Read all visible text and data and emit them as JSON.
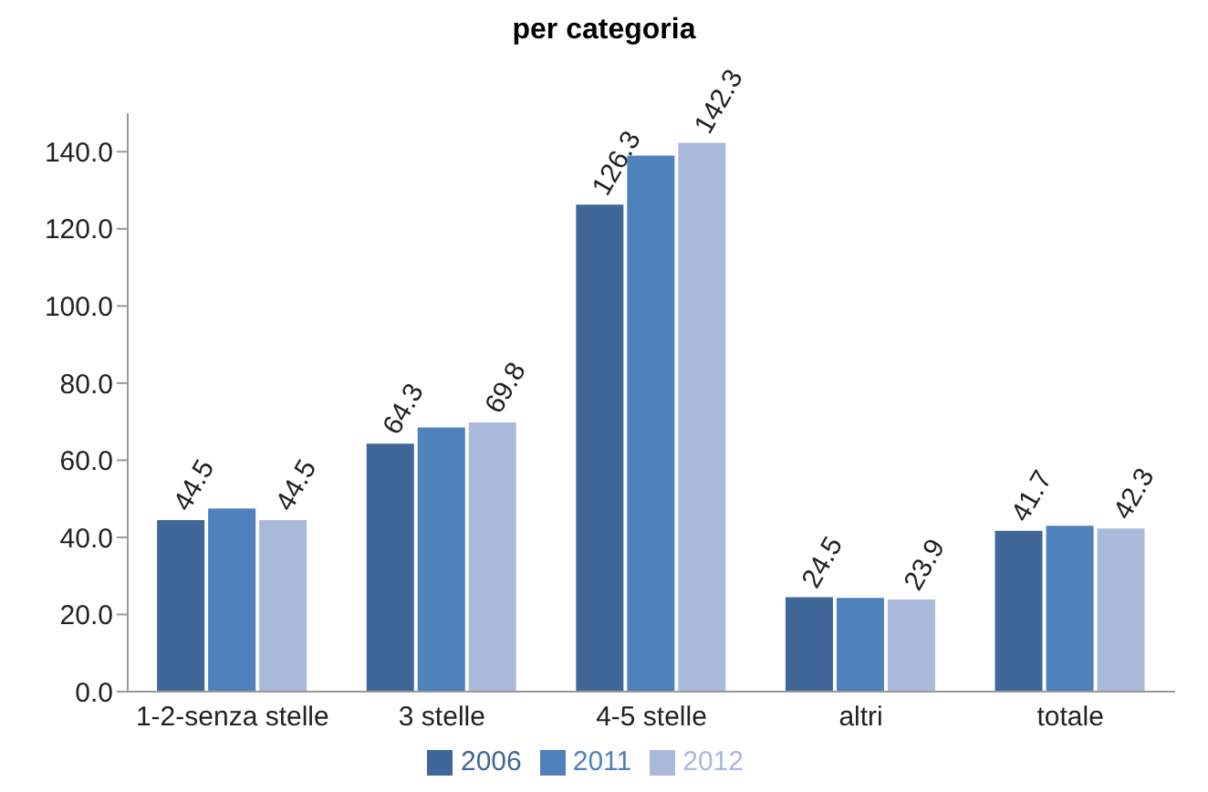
{
  "chart_data": {
    "type": "bar",
    "title": "per categoria",
    "categories": [
      "1-2-senza stelle",
      "3 stelle",
      "4-5 stelle",
      "altri",
      "totale"
    ],
    "series": [
      {
        "name": "2006",
        "color": "#3f6797",
        "values": [
          44.5,
          64.3,
          126.3,
          24.5,
          41.7
        ],
        "value_labels": [
          "44.5",
          "64.3",
          "126.3",
          "24.5",
          "41.7"
        ]
      },
      {
        "name": "2011",
        "color": "#4f81bd",
        "values": [
          47.5,
          68.5,
          139,
          24.3,
          43
        ],
        "value_labels": [
          null,
          null,
          null,
          null,
          null
        ]
      },
      {
        "name": "2012",
        "color": "#a9b9d9",
        "values": [
          44.5,
          69.8,
          142.3,
          23.9,
          42.3
        ],
        "value_labels": [
          "44.5",
          "69.8",
          "142.3",
          "23.9",
          "42.3"
        ]
      }
    ],
    "ylim": [
      0,
      150
    ],
    "yticks": [
      {
        "value": 0,
        "label": "0.0"
      },
      {
        "value": 20,
        "label": "20.0"
      },
      {
        "value": 40,
        "label": "40.0"
      },
      {
        "value": 60,
        "label": "60.0"
      },
      {
        "value": 80,
        "label": "80.0"
      },
      {
        "value": 100,
        "label": "100.0"
      },
      {
        "value": 120,
        "label": "120.0"
      },
      {
        "value": 140,
        "label": "140.0"
      }
    ],
    "grid": false,
    "legend": "bottom"
  }
}
